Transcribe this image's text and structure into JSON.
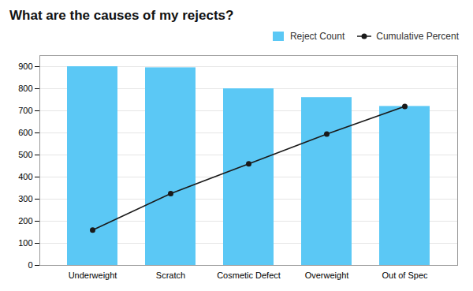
{
  "chart_data": {
    "type": "bar",
    "title": "What are the causes of my rejects?",
    "categories": [
      "Underweight",
      "Scratch",
      "Cosmetic Defect",
      "Overweight",
      "Out of Spec"
    ],
    "series": [
      {
        "name": "Reject Count",
        "type": "bar",
        "color": "#5BC8F5",
        "values": [
          900,
          895,
          800,
          760,
          720
        ]
      },
      {
        "name": "Cumulative Percent",
        "type": "line",
        "color": "#1a1a1a",
        "marker": "circle",
        "values": [
          160,
          325,
          460,
          595,
          720
        ]
      }
    ],
    "ylim": [
      0,
      950
    ],
    "yticks": [
      0,
      100,
      200,
      300,
      400,
      500,
      600,
      700,
      800,
      900
    ],
    "grid": true,
    "legend": "upper right"
  }
}
